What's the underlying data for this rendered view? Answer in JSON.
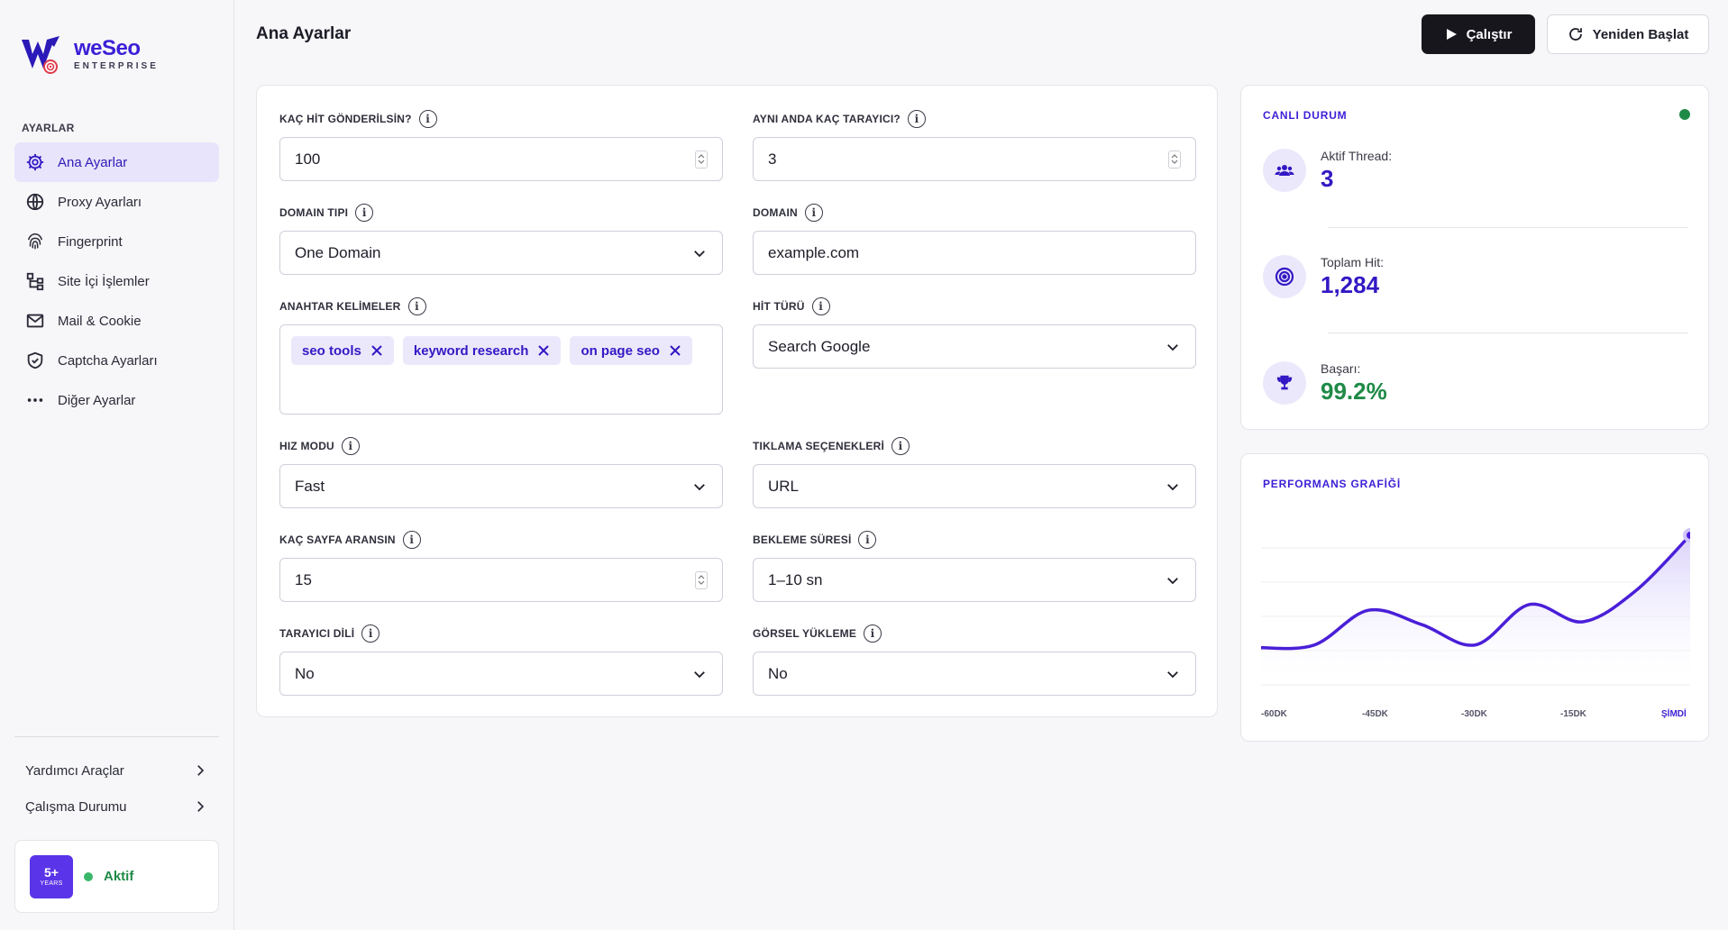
{
  "brand": {
    "name": "weSeo",
    "sub": "ENTERPRISE"
  },
  "sidebar": {
    "section": "AYARLAR",
    "items": [
      {
        "label": "Ana Ayarlar",
        "icon": "gear-icon",
        "active": true
      },
      {
        "label": "Proxy Ayarları",
        "icon": "globe-icon"
      },
      {
        "label": "Fingerprint",
        "icon": "fingerprint-icon"
      },
      {
        "label": "Site İçi İşlemler",
        "icon": "sitemap-icon"
      },
      {
        "label": "Mail & Cookie",
        "icon": "mail-icon"
      },
      {
        "label": "Captcha Ayarları",
        "icon": "shield-icon"
      },
      {
        "label": "Diğer Ayarlar",
        "icon": "more-icon"
      }
    ],
    "bottom": [
      {
        "label": "Yardımcı Araçlar"
      },
      {
        "label": "Çalışma Durumu"
      }
    ],
    "status": {
      "years_num": "5+",
      "years_text": "YEARS",
      "text": "Aktif"
    }
  },
  "header": {
    "title": "Ana Ayarlar",
    "run_label": "Çalıştır",
    "restart_label": "Yeniden Başlat"
  },
  "form": {
    "hit_count": {
      "label": "KAÇ HİT GÖNDERİLSİN?",
      "value": "100"
    },
    "browser_count": {
      "label": "AYNI ANDA KAÇ TARAYICI?",
      "value": "3"
    },
    "domain_type": {
      "label": "DOMAIN TIPI",
      "value": "One Domain"
    },
    "domain": {
      "label": "DOMAIN",
      "value": "example.com"
    },
    "keywords": {
      "label": "ANAHTAR KELİMELER",
      "tags": [
        "seo tools",
        "keyword research",
        "on page seo"
      ]
    },
    "hit_type": {
      "label": "HİT TÜRÜ",
      "value": "Search Google"
    },
    "speed_mode": {
      "label": "HIZ MODU",
      "value": "Fast"
    },
    "click_options": {
      "label": "TIKLAMA SEÇENEKLERİ",
      "value": "URL"
    },
    "page_count": {
      "label": "KAÇ SAYFA ARANSIN",
      "value": "15"
    },
    "wait_time": {
      "label": "BEKLEME SÜRESİ",
      "value": "1–10 sn"
    },
    "browser_lang": {
      "label": "TARAYICI DİLİ",
      "value": "No"
    },
    "image_load": {
      "label": "GÖRSEL YÜKLEME",
      "value": "No"
    }
  },
  "live": {
    "title": "CANLI DURUM",
    "stats": [
      {
        "label": "Aktif Thread:",
        "value": "3",
        "icon": "users-icon"
      },
      {
        "label": "Toplam Hit:",
        "value": "1,284",
        "icon": "target-icon"
      },
      {
        "label": "Başarı:",
        "value": "99.2%",
        "icon": "trophy-icon"
      }
    ]
  },
  "performance": {
    "title": "PERFORMANS GRAFİĞİ",
    "x_labels": [
      "-60DK",
      "-45DK",
      "-30DK",
      "-15DK",
      "ŞİMDİ"
    ]
  },
  "chart_data": {
    "type": "area",
    "title": "PERFORMANS GRAFİĞİ",
    "x": [
      "-60DK",
      "-52DK",
      "-45DK",
      "-37DK",
      "-30DK",
      "-22DK",
      "-15DK",
      "-7DK",
      "ŞİMDİ"
    ],
    "values": [
      22,
      24,
      48,
      38,
      24,
      52,
      40,
      62,
      100
    ],
    "ylim": [
      0,
      110
    ],
    "grid": true,
    "colors": {
      "line": "#4a1fd8",
      "fill": "#e6e0fb"
    }
  },
  "colors": {
    "accent": "#3b1fd6",
    "success": "#1f8a47",
    "dark": "#16161c"
  }
}
